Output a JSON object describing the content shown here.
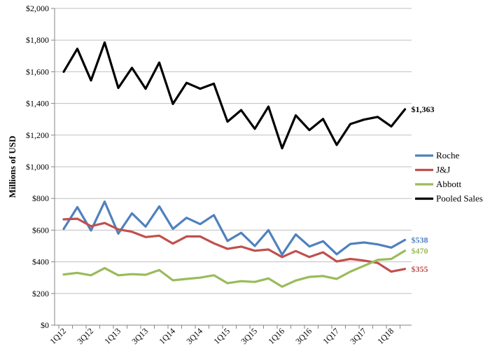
{
  "chart_data": {
    "type": "line",
    "ylabel": "Millions of USD",
    "ylim": [
      0,
      2000
    ],
    "yticks": [
      "$0",
      "$200",
      "$400",
      "$600",
      "$800",
      "$1,000",
      "$1,200",
      "$1,400",
      "$1,600",
      "$1,800",
      "$2,000"
    ],
    "xticklabels": [
      "1Q12",
      "3Q12",
      "1Q13",
      "3Q13",
      "1Q14",
      "3Q14",
      "1Q15",
      "3Q15",
      "1Q16",
      "3Q16",
      "1Q17",
      "3Q17",
      "1Q18"
    ],
    "grid": "horizontal",
    "legend_position": "right",
    "series": [
      {
        "name": "Roche",
        "color": "#4f81bd",
        "end_label": "$538",
        "values": [
          608,
          745,
          598,
          780,
          578,
          706,
          622,
          750,
          608,
          678,
          638,
          695,
          532,
          583,
          500,
          600,
          445,
          573,
          497,
          530,
          448,
          513,
          522,
          510,
          490,
          538
        ]
      },
      {
        "name": "J&J",
        "color": "#c0504d",
        "end_label": "$355",
        "values": [
          668,
          672,
          625,
          645,
          605,
          590,
          556,
          565,
          515,
          560,
          560,
          517,
          482,
          496,
          470,
          478,
          430,
          468,
          430,
          460,
          402,
          418,
          408,
          393,
          338,
          355
        ]
      },
      {
        "name": "Abbott",
        "color": "#9bbb59",
        "end_label": "$470",
        "values": [
          320,
          330,
          315,
          360,
          315,
          322,
          318,
          348,
          283,
          292,
          300,
          315,
          265,
          278,
          273,
          295,
          243,
          282,
          305,
          310,
          292,
          338,
          375,
          412,
          418,
          470
        ]
      },
      {
        "name": "Pooled Sales",
        "color": "#000000",
        "end_label": "$1,363",
        "values": [
          1600,
          1745,
          1545,
          1785,
          1498,
          1625,
          1493,
          1658,
          1397,
          1530,
          1493,
          1525,
          1285,
          1358,
          1240,
          1380,
          1117,
          1325,
          1232,
          1302,
          1138,
          1270,
          1298,
          1315,
          1255,
          1363
        ]
      }
    ]
  }
}
